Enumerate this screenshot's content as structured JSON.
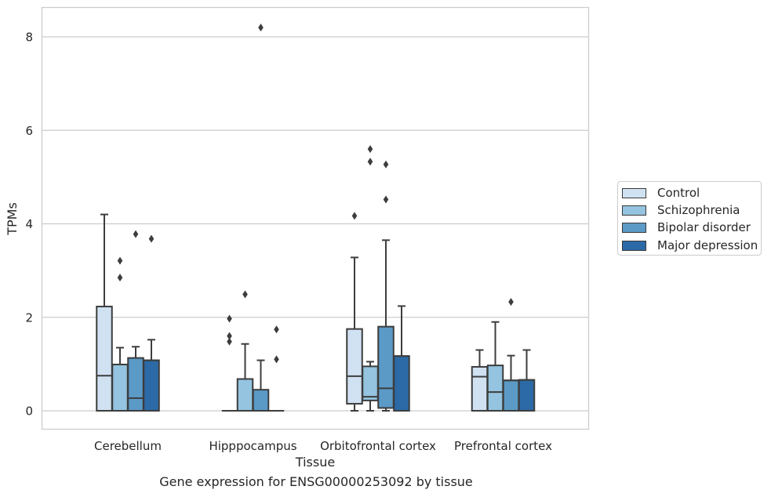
{
  "chart_data": {
    "type": "box",
    "xlabel": "Tissue",
    "ylabel": "TPMs",
    "caption": "Gene expression for ENSG00000253092 by tissue",
    "ylim": [
      -0.4,
      8.65
    ],
    "yticks": [
      0,
      2,
      4,
      6,
      8
    ],
    "grid": "horizontal",
    "legend_position": "right",
    "categories": [
      "Cerebellum",
      "Hipppocampus",
      "Orbitofrontal cortex",
      "Prefrontal cortex"
    ],
    "series": [
      {
        "name": "Control",
        "color": "#d0e1f2",
        "boxes": [
          {
            "q1": 0,
            "median": 0.75,
            "q3": 2.23,
            "whisker_low": 0,
            "whisker_high": 4.2,
            "outliers": []
          },
          {
            "q1": 0,
            "median": 0,
            "q3": 0,
            "whisker_low": 0,
            "whisker_high": 0,
            "outliers": [
              1.97,
              1.6,
              1.48
            ]
          },
          {
            "q1": 0.15,
            "median": 0.74,
            "q3": 1.75,
            "whisker_low": 0,
            "whisker_high": 3.28,
            "outliers": [
              4.17
            ]
          },
          {
            "q1": 0,
            "median": 0.73,
            "q3": 0.94,
            "whisker_low": 0,
            "whisker_high": 1.3,
            "outliers": []
          }
        ]
      },
      {
        "name": "Schizophrenia",
        "color": "#94c4df",
        "boxes": [
          {
            "q1": 0,
            "median": 0.99,
            "q3": 0.99,
            "whisker_low": 0,
            "whisker_high": 1.35,
            "outliers": [
              3.21,
              2.85
            ]
          },
          {
            "q1": 0,
            "median": 0,
            "q3": 0.68,
            "whisker_low": 0,
            "whisker_high": 1.43,
            "outliers": [
              2.49
            ]
          },
          {
            "q1": 0.22,
            "median": 0.3,
            "q3": 0.95,
            "whisker_low": 0,
            "whisker_high": 1.05,
            "outliers": [
              5.6,
              5.33
            ]
          },
          {
            "q1": 0,
            "median": 0.4,
            "q3": 0.97,
            "whisker_low": 0,
            "whisker_high": 1.9,
            "outliers": []
          }
        ]
      },
      {
        "name": "Bipolar disorder",
        "color": "#5b9ac7",
        "boxes": [
          {
            "q1": 0,
            "median": 0.27,
            "q3": 1.13,
            "whisker_low": 0,
            "whisker_high": 1.37,
            "outliers": [
              3.78
            ]
          },
          {
            "q1": 0,
            "median": 0,
            "q3": 0.45,
            "whisker_low": 0,
            "whisker_high": 1.08,
            "outliers": [
              8.2
            ]
          },
          {
            "q1": 0.06,
            "median": 0.48,
            "q3": 1.8,
            "whisker_low": 0,
            "whisker_high": 3.65,
            "outliers": [
              5.27,
              4.52
            ]
          },
          {
            "q1": 0,
            "median": 0.65,
            "q3": 0.65,
            "whisker_low": 0,
            "whisker_high": 1.18,
            "outliers": [
              2.33
            ]
          }
        ]
      },
      {
        "name": "Major depression",
        "color": "#2b6aa6",
        "boxes": [
          {
            "q1": 0,
            "median": 1.08,
            "q3": 1.08,
            "whisker_low": 0,
            "whisker_high": 1.52,
            "outliers": [
              3.68
            ]
          },
          {
            "q1": 0,
            "median": 0,
            "q3": 0,
            "whisker_low": 0,
            "whisker_high": 0,
            "outliers": [
              1.74,
              1.1
            ]
          },
          {
            "q1": 0,
            "median": 1.17,
            "q3": 1.17,
            "whisker_low": 0,
            "whisker_high": 2.24,
            "outliers": []
          },
          {
            "q1": 0,
            "median": 0.66,
            "q3": 0.66,
            "whisker_low": 0,
            "whisker_high": 1.3,
            "outliers": []
          }
        ]
      }
    ]
  }
}
